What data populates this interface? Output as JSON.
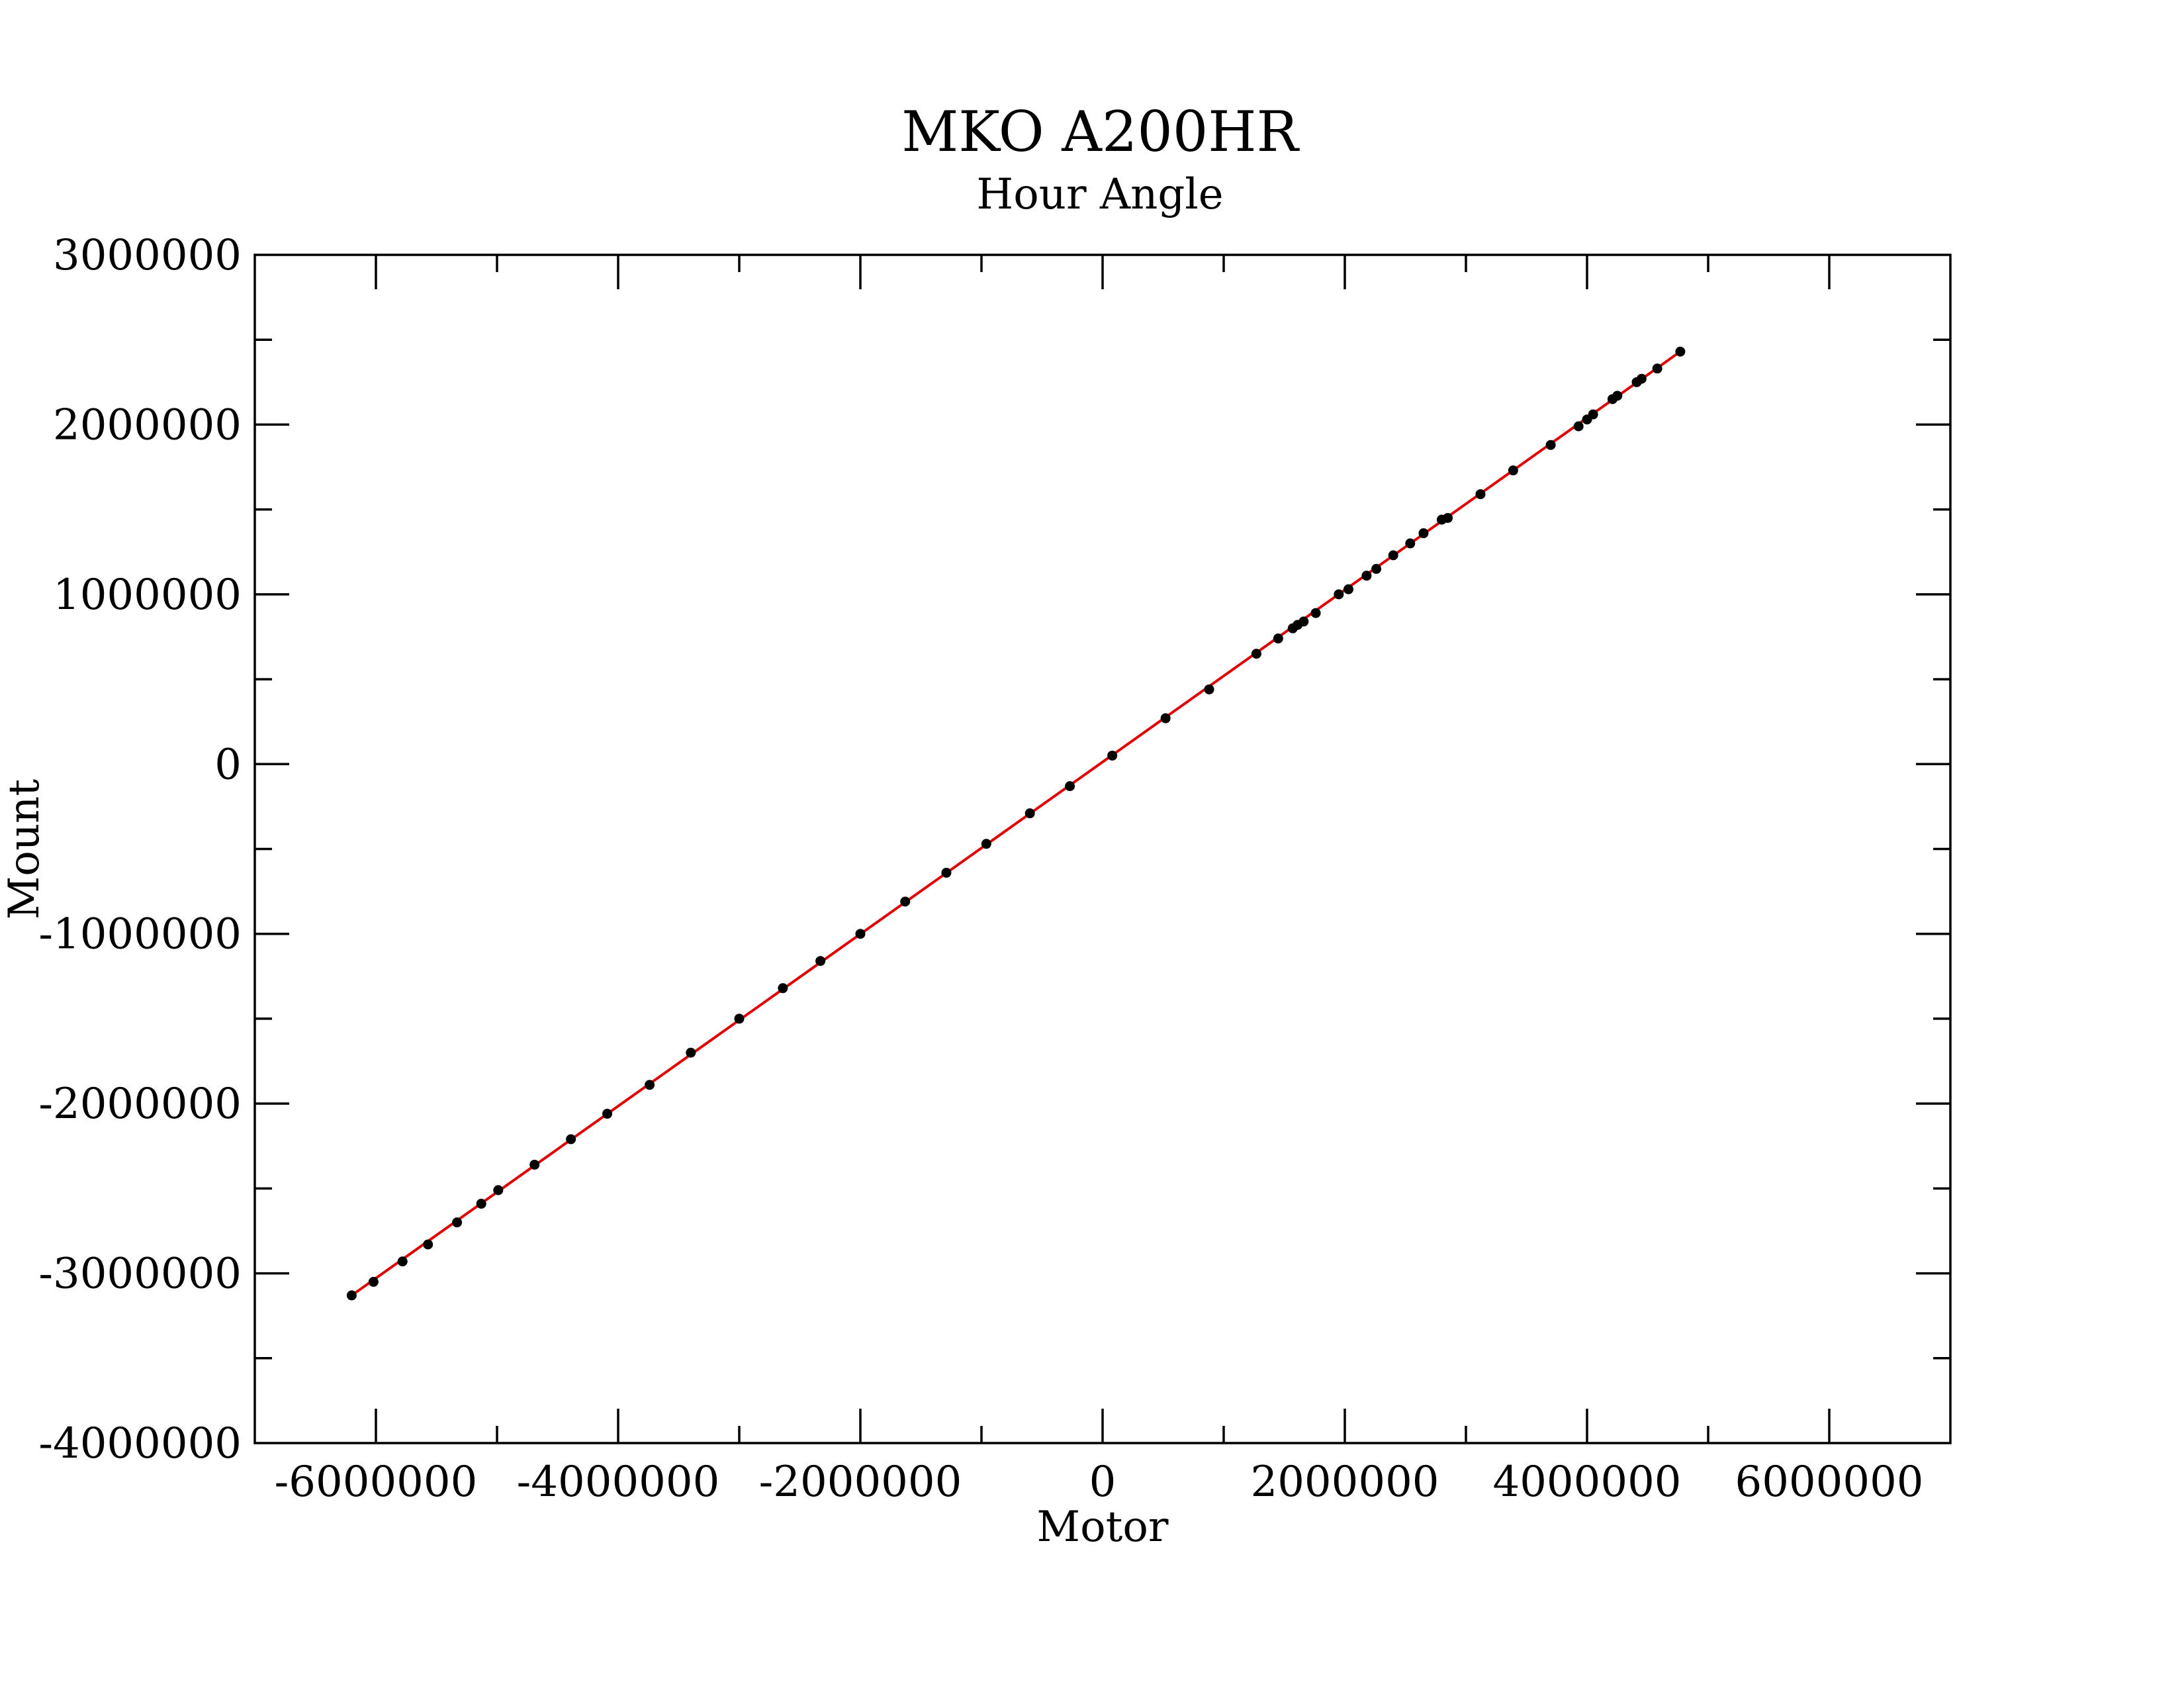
{
  "chart_data": {
    "type": "scatter",
    "title": "MKO A200HR",
    "subtitle": "Hour Angle",
    "xlabel": "Motor",
    "ylabel": "Mount",
    "xlim": [
      -7000000,
      7000000
    ],
    "ylim": [
      -4000000,
      3000000
    ],
    "xticks": [
      -6000000,
      -4000000,
      -2000000,
      0,
      2000000,
      4000000,
      6000000
    ],
    "xtick_labels": [
      "-6000000",
      "-4000000",
      "-2000000",
      "0",
      "2000000",
      "4000000",
      "6000000"
    ],
    "yticks": [
      -4000000,
      -3000000,
      -2000000,
      -1000000,
      0,
      1000000,
      2000000,
      3000000
    ],
    "ytick_labels": [
      "-4000000",
      "-3000000",
      "-2000000",
      "-1000000",
      "0",
      "1000000",
      "2000000",
      "3000000"
    ],
    "grid": false,
    "colors": {
      "points": "#000000",
      "fit_line": "#e00000",
      "axes": "#000000"
    },
    "series": [
      {
        "type": "scatter",
        "x": [
          -6200000,
          -6020000,
          -5780000,
          -5570000,
          -5330000,
          -5130000,
          -4990000,
          -4690000,
          -4390000,
          -4090000,
          -3740000,
          -3400000,
          -3000000,
          -2640000,
          -2330000,
          -2000000,
          -1630000,
          -1290000,
          -960000,
          -600000,
          -270000,
          80000,
          520000,
          880000,
          1270000,
          1450000,
          1570000,
          1610000,
          1660000,
          1760000,
          1950000,
          2030000,
          2180000,
          2260000,
          2400000,
          2540000,
          2650000,
          2800000,
          2850000,
          3120000,
          3390000,
          3700000,
          3930000,
          4000000,
          4050000,
          4210000,
          4250000,
          4410000,
          4450000,
          4580000,
          4770000
        ],
        "y": [
          -3130000,
          -3050000,
          -2930000,
          -2830000,
          -2700000,
          -2590000,
          -2510000,
          -2360000,
          -2210000,
          -2060000,
          -1890000,
          -1700000,
          -1500000,
          -1320000,
          -1160000,
          -1000000,
          -810000,
          -640000,
          -470000,
          -290000,
          -130000,
          50000,
          270000,
          440000,
          650000,
          740000,
          800000,
          820000,
          840000,
          890000,
          1000000,
          1030000,
          1110000,
          1150000,
          1230000,
          1300000,
          1360000,
          1440000,
          1450000,
          1590000,
          1730000,
          1880000,
          1990000,
          2030000,
          2060000,
          2150000,
          2170000,
          2250000,
          2270000,
          2330000,
          2430000
        ]
      },
      {
        "type": "line",
        "x": [
          -6200000,
          4770000
        ],
        "y": [
          -3130000,
          2430000
        ]
      }
    ]
  }
}
